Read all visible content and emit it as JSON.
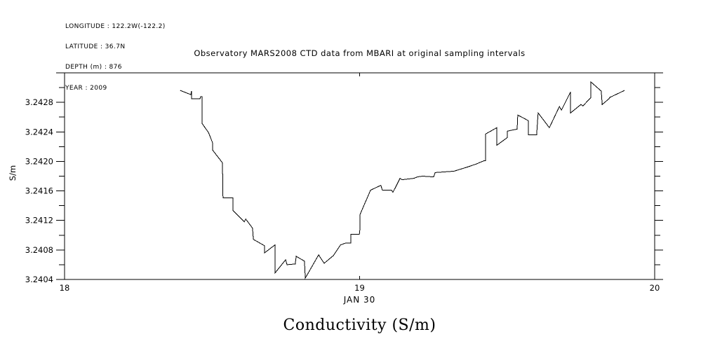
{
  "figure": {
    "background": "#ffffff",
    "foreground": "#000000"
  },
  "metadata_block": {
    "lines": [
      "LONGITUDE : 122.2W(-122.2)",
      "LATITUDE : 36.7N",
      "DEPTH (m) : 876",
      "YEAR : 2009"
    ]
  },
  "chart_data": {
    "type": "line",
    "title": "Observatory MARS2008 CTD data from MBARI at original sampling intervals",
    "ylabel": "S/m",
    "xlabel": "JAN 30",
    "caption": "Conductivity (S/m)",
    "xlim": [
      18,
      20
    ],
    "ylim": [
      3.2404,
      3.2432
    ],
    "x_ticks": [
      18,
      19,
      20
    ],
    "x_tick_labels": [
      "18",
      "19",
      "20"
    ],
    "y_major_step": 0.0004,
    "y_minor_step": 0.0002,
    "y_tick_labels": [
      "3.2404",
      "3.2408",
      "3.2412",
      "3.2416",
      "3.2420",
      "3.2424",
      "3.2428"
    ],
    "grid": false,
    "legend": "none",
    "line_color": "#000000",
    "series": [
      {
        "name": "conductivity",
        "x": [
          18.392,
          18.428,
          18.43,
          18.43,
          18.459,
          18.461,
          18.466,
          18.466,
          18.488,
          18.502,
          18.502,
          18.535,
          18.537,
          18.571,
          18.571,
          18.609,
          18.614,
          18.637,
          18.64,
          18.678,
          18.678,
          18.713,
          18.713,
          18.749,
          18.754,
          18.782,
          18.785,
          18.813,
          18.816,
          18.861,
          18.88,
          18.911,
          18.935,
          18.954,
          18.97,
          18.97,
          18.999,
          19.001,
          19.001,
          19.037,
          19.072,
          19.077,
          19.108,
          19.113,
          19.137,
          19.144,
          19.184,
          19.196,
          19.213,
          19.251,
          19.256,
          19.32,
          19.358,
          19.394,
          19.422,
          19.427,
          19.427,
          19.465,
          19.465,
          19.501,
          19.501,
          19.534,
          19.536,
          19.572,
          19.572,
          19.6,
          19.605,
          19.643,
          19.677,
          19.684,
          19.715,
          19.715,
          19.75,
          19.757,
          19.784,
          19.784,
          19.819,
          19.822,
          19.845,
          19.848,
          19.898
        ],
        "y": [
          3.242962,
          3.242905,
          3.242952,
          3.242848,
          3.242848,
          3.242876,
          3.242876,
          3.242514,
          3.24239,
          3.242248,
          3.242152,
          3.241981,
          3.241505,
          3.241505,
          3.241333,
          3.241181,
          3.241219,
          3.241095,
          3.240943,
          3.240857,
          3.240762,
          3.240867,
          3.240486,
          3.240667,
          3.2406,
          3.24061,
          3.240714,
          3.240648,
          3.240419,
          3.240733,
          3.240619,
          3.240724,
          3.240867,
          3.240895,
          3.240895,
          3.24101,
          3.24101,
          3.241076,
          3.241276,
          3.24161,
          3.241676,
          3.24161,
          3.24161,
          3.241581,
          3.241771,
          3.241752,
          3.241771,
          3.24179,
          3.2418,
          3.24179,
          3.241848,
          3.241867,
          3.241914,
          3.241962,
          3.24201,
          3.24201,
          3.242371,
          3.242457,
          3.242219,
          3.242324,
          3.24241,
          3.242438,
          3.242629,
          3.242552,
          3.242362,
          3.242362,
          3.242657,
          3.242457,
          3.242743,
          3.242695,
          3.242943,
          3.242657,
          3.242771,
          3.242752,
          3.242867,
          3.243076,
          3.242952,
          3.242771,
          3.242848,
          3.242867,
          3.242962
        ]
      }
    ]
  }
}
